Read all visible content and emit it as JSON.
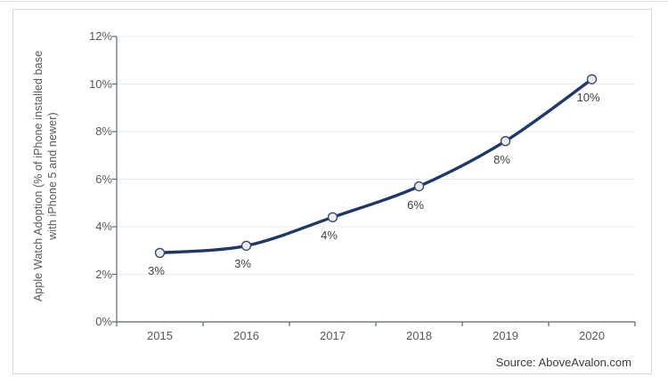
{
  "chart": {
    "y_axis_title_line1": "Apple Watch Adoption (% of iPhone installed base",
    "y_axis_title_line2": "with iPhone 5 and newer)",
    "source": "Source: AboveAvalon.com"
  },
  "chart_data": {
    "type": "line",
    "title": "",
    "xlabel": "",
    "ylabel": "Apple Watch Adoption (% of iPhone installed base with iPhone 5 and newer)",
    "categories": [
      "2015",
      "2016",
      "2017",
      "2018",
      "2019",
      "2020"
    ],
    "series": [
      {
        "name": "Apple Watch adoption",
        "values": [
          2.9,
          3.2,
          4.4,
          5.7,
          7.6,
          10.2
        ],
        "data_labels": [
          "3%",
          "3%",
          "4%",
          "6%",
          "8%",
          "10%"
        ]
      }
    ],
    "ylim": [
      0,
      12
    ],
    "y_tick_values": [
      0,
      2,
      4,
      6,
      8,
      10,
      12
    ],
    "y_tick_labels": [
      "0%",
      "2%",
      "4%",
      "6%",
      "8%",
      "10%",
      "12%"
    ],
    "grid": true,
    "legend": false,
    "source": "Source: AboveAvalon.com",
    "colors": {
      "line": "#1f3864",
      "marker_fill": "#eaecf2",
      "marker_stroke": "#3b4a68",
      "grid": "#ebebeb",
      "axis": "#5a6472",
      "tick_label": "#595959",
      "data_label": "#3f3f3f"
    }
  }
}
